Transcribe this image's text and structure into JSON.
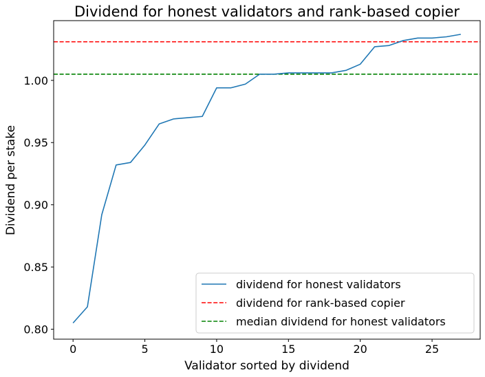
{
  "chart_data": {
    "type": "line",
    "title": "Dividend for honest validators and rank-based copier",
    "xlabel": "Validator sorted by dividend",
    "ylabel": "Dividend per stake",
    "xlim": [
      -1.35,
      28.35
    ],
    "ylim": [
      0.792,
      1.048
    ],
    "xticks": [
      0,
      5,
      10,
      15,
      20,
      25
    ],
    "yticks": [
      0.8,
      0.85,
      0.9,
      0.95,
      1.0
    ],
    "ytick_labels": [
      "0.80",
      "0.85",
      "0.90",
      "0.95",
      "1.00"
    ],
    "grid": false,
    "legend_position": "lower-right",
    "series": [
      {
        "name": "dividend for honest validators",
        "style": "solid",
        "color": "#1f77b4",
        "x": [
          0,
          1,
          2,
          3,
          4,
          5,
          6,
          7,
          8,
          9,
          10,
          11,
          12,
          13,
          14,
          15,
          16,
          17,
          18,
          19,
          20,
          21,
          22,
          23,
          24,
          25,
          26,
          27
        ],
        "y": [
          0.805,
          0.818,
          0.892,
          0.932,
          0.934,
          0.948,
          0.965,
          0.969,
          0.97,
          0.971,
          0.994,
          0.994,
          0.997,
          1.005,
          1.005,
          1.006,
          1.006,
          1.006,
          1.006,
          1.008,
          1.013,
          1.027,
          1.028,
          1.032,
          1.034,
          1.034,
          1.035,
          1.037
        ]
      }
    ],
    "hlines": [
      {
        "name": "dividend for rank-based copier",
        "y": 1.031,
        "style": "dashed",
        "color": "#ff0000"
      },
      {
        "name": "median dividend for honest validators",
        "y": 1.005,
        "style": "dashed",
        "color": "#008000"
      }
    ]
  }
}
